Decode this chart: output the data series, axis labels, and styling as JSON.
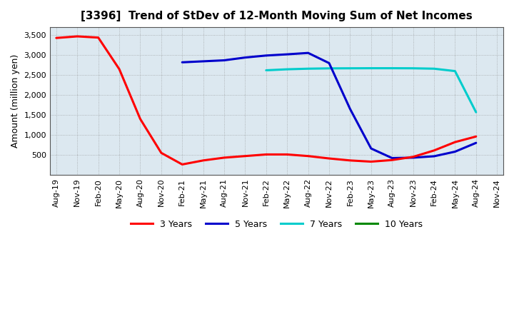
{
  "title": "[3396]  Trend of StDev of 12-Month Moving Sum of Net Incomes",
  "ylabel": "Amount (million yen)",
  "background_color": "#ffffff",
  "plot_bg_color": "#dce8f0",
  "grid_color": "#888888",
  "ylim": [
    0,
    3700
  ],
  "yticks": [
    500,
    1000,
    1500,
    2000,
    2500,
    3000,
    3500
  ],
  "series": {
    "3 Years": {
      "color": "#ff0000",
      "data": [
        [
          "Aug-19",
          3430
        ],
        [
          "Nov-19",
          3470
        ],
        [
          "Feb-20",
          3440
        ],
        [
          "May-20",
          2650
        ],
        [
          "Aug-20",
          1400
        ],
        [
          "Nov-20",
          550
        ],
        [
          "Feb-21",
          260
        ],
        [
          "May-21",
          360
        ],
        [
          "Aug-21",
          430
        ],
        [
          "Nov-21",
          470
        ],
        [
          "Feb-22",
          510
        ],
        [
          "May-22",
          510
        ],
        [
          "Aug-22",
          470
        ],
        [
          "Nov-22",
          410
        ],
        [
          "Feb-23",
          360
        ],
        [
          "May-23",
          330
        ],
        [
          "Aug-23",
          370
        ],
        [
          "Nov-23",
          450
        ],
        [
          "Feb-24",
          610
        ],
        [
          "May-24",
          820
        ],
        [
          "Aug-24",
          960
        ],
        [
          "Nov-24",
          null
        ]
      ]
    },
    "5 Years": {
      "color": "#0000cc",
      "data": [
        [
          "Aug-19",
          null
        ],
        [
          "Nov-19",
          null
        ],
        [
          "Feb-20",
          null
        ],
        [
          "May-20",
          null
        ],
        [
          "Aug-20",
          null
        ],
        [
          "Nov-20",
          null
        ],
        [
          "Feb-21",
          2820
        ],
        [
          "May-21",
          2845
        ],
        [
          "Aug-21",
          2870
        ],
        [
          "Nov-21",
          2940
        ],
        [
          "Feb-22",
          2990
        ],
        [
          "May-22",
          3020
        ],
        [
          "Aug-22",
          3055
        ],
        [
          "Nov-22",
          2800
        ],
        [
          "Feb-23",
          1650
        ],
        [
          "May-23",
          660
        ],
        [
          "Aug-23",
          420
        ],
        [
          "Nov-23",
          430
        ],
        [
          "Feb-24",
          465
        ],
        [
          "May-24",
          580
        ],
        [
          "Aug-24",
          800
        ],
        [
          "Nov-24",
          null
        ]
      ]
    },
    "7 Years": {
      "color": "#00cccc",
      "data": [
        [
          "Aug-19",
          null
        ],
        [
          "Nov-19",
          null
        ],
        [
          "Feb-20",
          null
        ],
        [
          "May-20",
          null
        ],
        [
          "Aug-20",
          null
        ],
        [
          "Nov-20",
          null
        ],
        [
          "Feb-21",
          null
        ],
        [
          "May-21",
          null
        ],
        [
          "Aug-21",
          null
        ],
        [
          "Nov-21",
          null
        ],
        [
          "Feb-22",
          2620
        ],
        [
          "May-22",
          2645
        ],
        [
          "Aug-22",
          2660
        ],
        [
          "Nov-22",
          2668
        ],
        [
          "Feb-23",
          2670
        ],
        [
          "May-23",
          2672
        ],
        [
          "Aug-23",
          2672
        ],
        [
          "Nov-23",
          2670
        ],
        [
          "Feb-24",
          2660
        ],
        [
          "May-24",
          2600
        ],
        [
          "Aug-24",
          1570
        ],
        [
          "Nov-24",
          null
        ]
      ]
    },
    "10 Years": {
      "color": "#008800",
      "data": [
        [
          "Aug-19",
          null
        ],
        [
          "Nov-19",
          null
        ],
        [
          "Feb-20",
          null
        ],
        [
          "May-20",
          null
        ],
        [
          "Aug-20",
          null
        ],
        [
          "Nov-20",
          null
        ],
        [
          "Feb-21",
          null
        ],
        [
          "May-21",
          null
        ],
        [
          "Aug-21",
          null
        ],
        [
          "Nov-21",
          null
        ],
        [
          "Feb-22",
          null
        ],
        [
          "May-22",
          null
        ],
        [
          "Aug-22",
          null
        ],
        [
          "Nov-22",
          null
        ],
        [
          "Feb-23",
          null
        ],
        [
          "May-23",
          null
        ],
        [
          "Aug-23",
          null
        ],
        [
          "Nov-23",
          null
        ],
        [
          "Feb-24",
          null
        ],
        [
          "May-24",
          null
        ],
        [
          "Aug-24",
          null
        ],
        [
          "Nov-24",
          null
        ]
      ]
    }
  },
  "x_labels": [
    "Aug-19",
    "Nov-19",
    "Feb-20",
    "May-20",
    "Aug-20",
    "Nov-20",
    "Feb-21",
    "May-21",
    "Aug-21",
    "Nov-21",
    "Feb-22",
    "May-22",
    "Aug-22",
    "Nov-22",
    "Feb-23",
    "May-23",
    "Aug-23",
    "Nov-23",
    "Feb-24",
    "May-24",
    "Aug-24",
    "Nov-24"
  ],
  "linewidth": 2.2,
  "title_fontsize": 11,
  "ylabel_fontsize": 9,
  "tick_fontsize": 8,
  "legend_fontsize": 9
}
